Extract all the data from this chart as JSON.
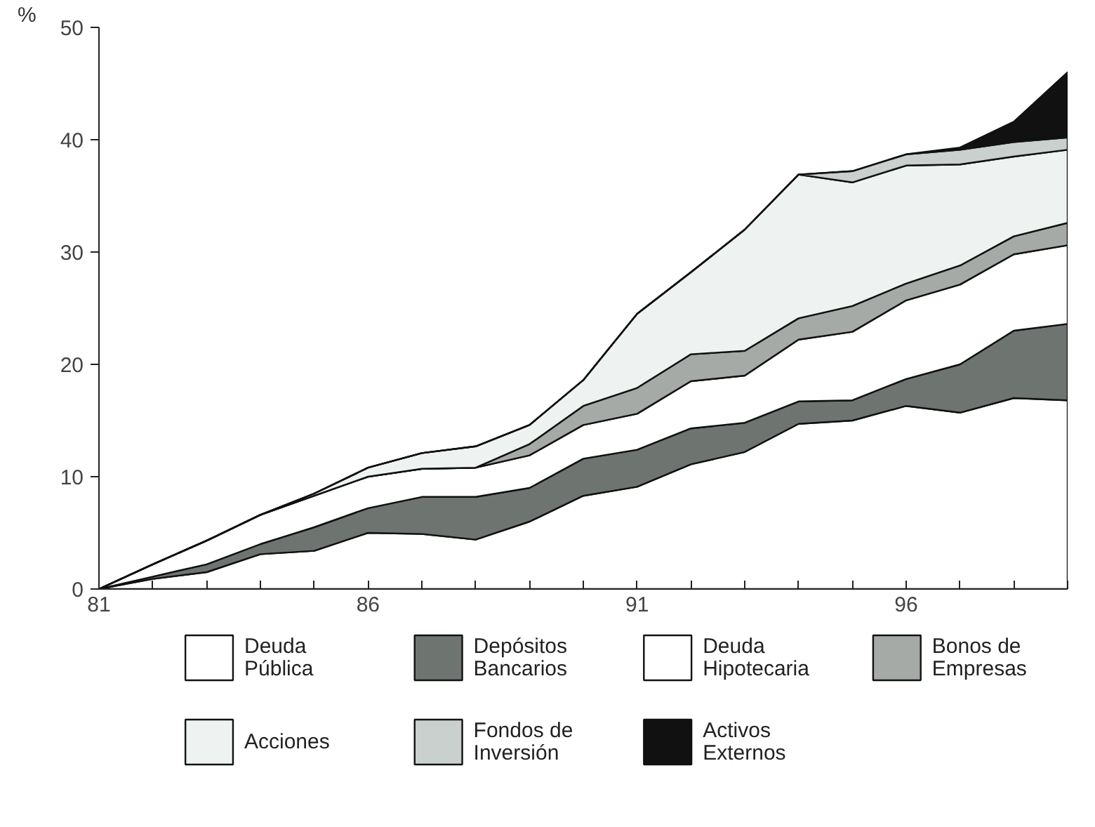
{
  "chart_data": {
    "type": "area",
    "stacked": true,
    "ylabel": "%",
    "x": [
      81,
      82,
      83,
      84,
      85,
      86,
      87,
      88,
      89,
      90,
      91,
      92,
      93,
      94,
      95,
      96,
      97,
      98,
      99
    ],
    "xlim": [
      81,
      99
    ],
    "ylim": [
      0,
      50
    ],
    "yticks": [
      0,
      10,
      20,
      30,
      40,
      50
    ],
    "xticks": [
      81,
      {
        "value": 82,
        "label": null
      },
      {
        "value": 83,
        "label": null
      },
      {
        "value": 84,
        "label": null
      },
      {
        "value": 85,
        "label": null
      },
      86,
      {
        "value": 87,
        "label": null
      },
      {
        "value": 88,
        "label": null
      },
      {
        "value": 89,
        "label": null
      },
      {
        "value": 90,
        "label": null
      },
      91,
      {
        "value": 92,
        "label": null
      },
      {
        "value": 93,
        "label": null
      },
      {
        "value": 94,
        "label": null
      },
      {
        "value": 95,
        "label": null
      },
      96,
      {
        "value": 97,
        "label": null
      },
      {
        "value": 98,
        "label": null
      },
      {
        "value": 99,
        "label": null
      }
    ],
    "grid": false,
    "legend": "bottom",
    "series": [
      {
        "name": "Deuda Pública",
        "color": "#ffffff",
        "values": [
          0,
          0.9,
          1.5,
          3.1,
          3.4,
          5.0,
          4.9,
          4.4,
          6.0,
          8.3,
          9.1,
          11.1,
          12.2,
          14.7,
          15.0,
          16.3,
          15.7,
          17.0,
          16.8
        ]
      },
      {
        "name": "Depósitos Bancarios",
        "color": "#6e7570",
        "values": [
          0,
          0.2,
          0.7,
          0.9,
          2.1,
          2.2,
          3.3,
          3.8,
          3.0,
          3.3,
          3.3,
          3.2,
          2.6,
          2.0,
          1.8,
          2.4,
          4.3,
          6.0,
          6.8
        ]
      },
      {
        "name": "Deuda Hipotecaria",
        "color": "#ffffff",
        "values": [
          0,
          1.1,
          2.1,
          2.6,
          2.8,
          2.8,
          2.5,
          2.6,
          2.9,
          3.0,
          3.2,
          4.2,
          4.2,
          5.5,
          6.1,
          7.0,
          7.1,
          6.8,
          7.0
        ]
      },
      {
        "name": "Bonos de Empresas",
        "color": "#a5aaa6",
        "values": [
          0,
          0,
          0,
          0,
          0,
          0,
          0,
          0,
          1.0,
          1.7,
          2.3,
          2.4,
          2.2,
          1.9,
          2.3,
          1.5,
          1.7,
          1.6,
          2.0
        ]
      },
      {
        "name": "Acciones",
        "color": "#eef3f2",
        "values": [
          0,
          0,
          0,
          0,
          0.2,
          0.8,
          1.4,
          1.9,
          1.7,
          2.3,
          6.6,
          7.3,
          10.8,
          12.8,
          11.0,
          10.5,
          9.0,
          7.1,
          6.5
        ]
      },
      {
        "name": "Fondos de Inversión",
        "color": "#c9d0cd",
        "values": [
          0,
          0,
          0,
          0,
          0,
          0,
          0,
          0,
          0,
          0,
          0,
          0,
          0,
          0,
          1.0,
          1.0,
          1.3,
          1.3,
          1.1
        ]
      },
      {
        "name": "Activos Externos",
        "color": "#111111",
        "values": [
          0,
          0,
          0,
          0,
          0,
          0,
          0,
          0,
          0,
          0,
          0,
          0,
          0,
          0,
          0,
          0,
          0.2,
          1.8,
          5.8
        ]
      }
    ]
  }
}
